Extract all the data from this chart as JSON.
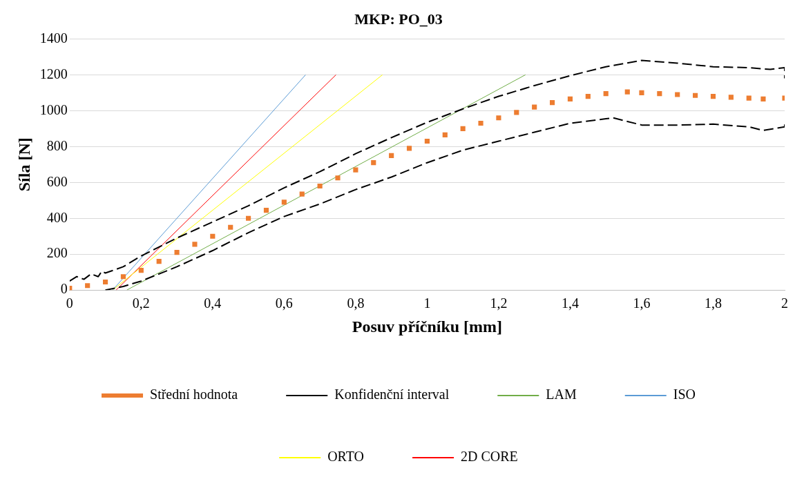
{
  "chart_data": {
    "type": "line",
    "title": "MKP: PO_03",
    "xlabel": "Posuv příčníku [mm]",
    "ylabel": "Síla [N]",
    "xlim": [
      0,
      2
    ],
    "xticks": [
      {
        "value": 0,
        "label": "0"
      },
      {
        "value": 0.2,
        "label": "0,2"
      },
      {
        "value": 0.4,
        "label": "0,4"
      },
      {
        "value": 0.6,
        "label": "0,6"
      },
      {
        "value": 0.8,
        "label": "0,8"
      },
      {
        "value": 1,
        "label": "1"
      },
      {
        "value": 1.2,
        "label": "1,2"
      },
      {
        "value": 1.4,
        "label": "1,4"
      },
      {
        "value": 1.6,
        "label": "1,6"
      },
      {
        "value": 1.8,
        "label": "1,8"
      },
      {
        "value": 2,
        "label": "2"
      }
    ],
    "ylim": [
      0,
      1400
    ],
    "yticks": [
      0,
      200,
      400,
      600,
      800,
      1000,
      1200,
      1400
    ],
    "grid": "y",
    "legend": "bottom",
    "series": [
      {
        "name": "Střední hodnota",
        "type": "scatter",
        "marker": "square",
        "color": "#ed7d31",
        "x": [
          0,
          0.05,
          0.1,
          0.15,
          0.2,
          0.25,
          0.3,
          0.35,
          0.4,
          0.45,
          0.5,
          0.55,
          0.6,
          0.65,
          0.7,
          0.75,
          0.8,
          0.85,
          0.9,
          0.95,
          1,
          1.05,
          1.1,
          1.15,
          1.2,
          1.25,
          1.3,
          1.35,
          1.4,
          1.45,
          1.5,
          1.56,
          1.6,
          1.65,
          1.7,
          1.75,
          1.8,
          1.85,
          1.9,
          1.94,
          2
        ],
        "values": [
          10,
          25,
          45,
          75,
          110,
          160,
          210,
          255,
          300,
          350,
          400,
          445,
          490,
          535,
          580,
          625,
          670,
          710,
          750,
          790,
          830,
          865,
          900,
          930,
          960,
          990,
          1020,
          1045,
          1065,
          1080,
          1095,
          1105,
          1100,
          1095,
          1090,
          1085,
          1080,
          1075,
          1070,
          1065,
          1070
        ]
      },
      {
        "name": "Konfidenční interval",
        "line_style": "dashed",
        "color": "#000000",
        "x": [
          0,
          0.02,
          0.04,
          0.06,
          0.08,
          0.09,
          0.1,
          0.15,
          0.2,
          0.3,
          0.4,
          0.5,
          0.6,
          0.7,
          0.8,
          0.9,
          1,
          1.1,
          1.2,
          1.3,
          1.4,
          1.5,
          1.6,
          1.7,
          1.8,
          1.9,
          1.96,
          2,
          2
        ],
        "values": [
          50,
          75,
          60,
          90,
          75,
          105,
          95,
          130,
          190,
          290,
          380,
          470,
          570,
          660,
          760,
          850,
          935,
          1010,
          1080,
          1140,
          1195,
          1245,
          1280,
          1265,
          1245,
          1240,
          1230,
          1240,
          1180
        ]
      },
      {
        "line_style": "dashed",
        "color": "#000000",
        "x": [
          0.1,
          0.15,
          0.2,
          0.3,
          0.4,
          0.5,
          0.6,
          0.7,
          0.8,
          0.9,
          1,
          1.1,
          1.2,
          1.3,
          1.4,
          1.5,
          1.52,
          1.6,
          1.7,
          1.8,
          1.9,
          1.94,
          2,
          2
        ],
        "values": [
          0,
          20,
          50,
          130,
          220,
          320,
          410,
          480,
          560,
          630,
          710,
          780,
          830,
          880,
          930,
          955,
          960,
          920,
          920,
          925,
          910,
          890,
          910,
          940
        ]
      },
      {
        "name": "LAM",
        "color": "#70ad47",
        "x": [
          0.16,
          1.275
        ],
        "values": [
          0,
          1200
        ]
      },
      {
        "name": "ISO",
        "color": "#5b9bd5",
        "x": [
          0.12,
          0.66
        ],
        "values": [
          0,
          1200
        ]
      },
      {
        "name": "ORTO",
        "color": "#ffff00",
        "x": [
          0.12,
          0.875
        ],
        "values": [
          0,
          1200
        ]
      },
      {
        "name": "2D CORE",
        "color": "#ff0000",
        "x": [
          0.13,
          0.745
        ],
        "values": [
          0,
          1200
        ]
      }
    ]
  }
}
